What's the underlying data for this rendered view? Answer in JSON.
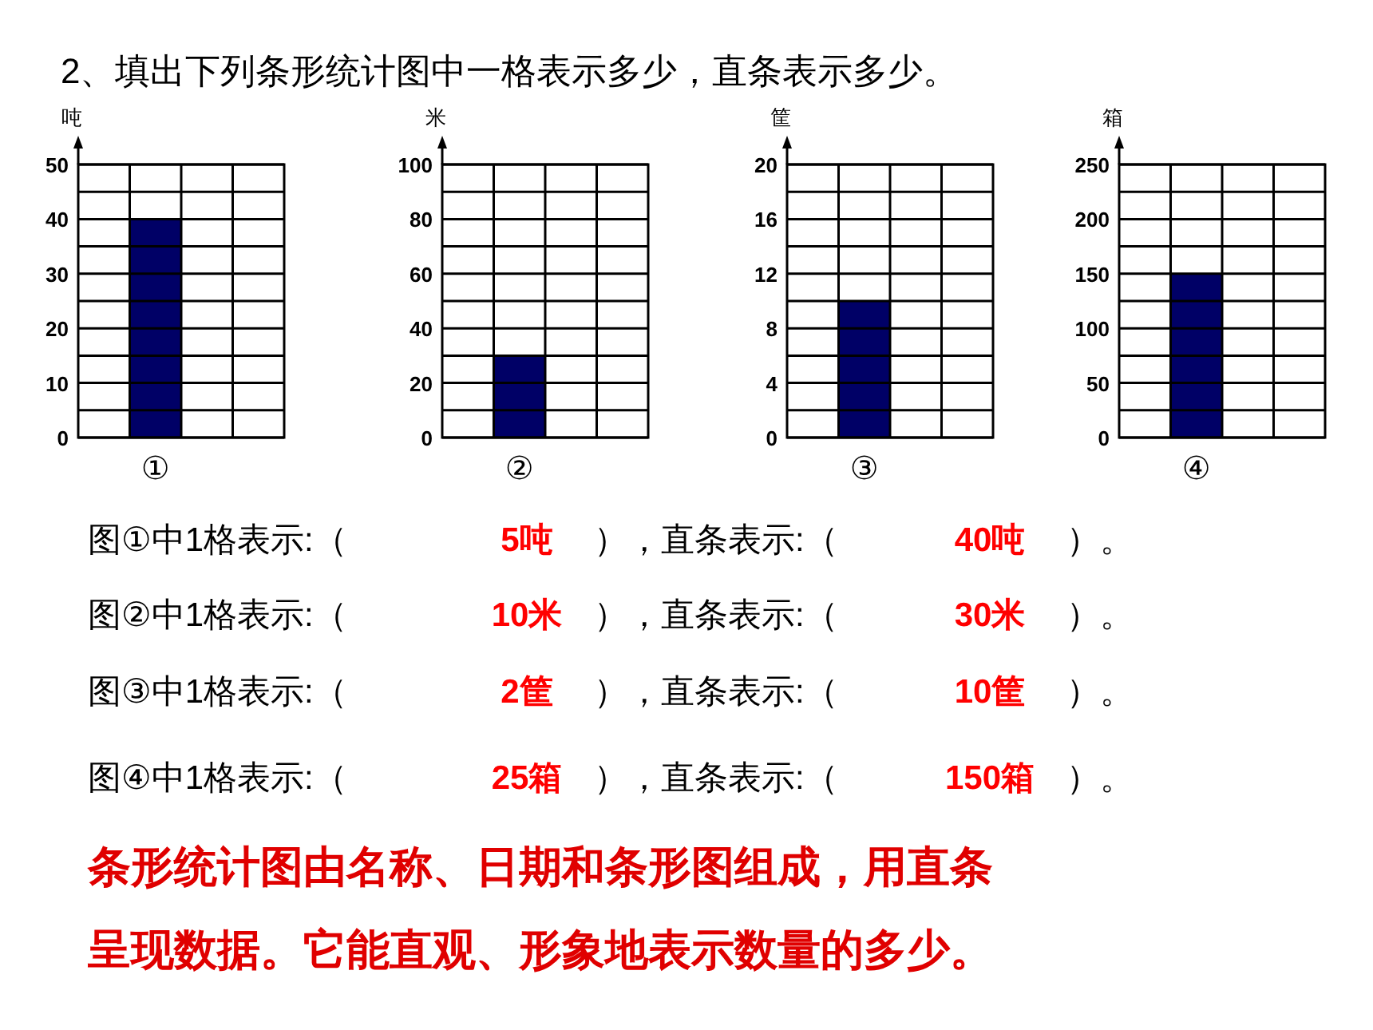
{
  "chart_data": [
    {
      "type": "bar",
      "title": "2、填出下列条形统计图中一格表示多少，直条表示多少。",
      "ylabel": "吨",
      "xlabel": "①",
      "categories": [
        null,
        null,
        null,
        null
      ],
      "values": [
        null,
        40,
        null,
        null
      ],
      "color": "#000066",
      "ylim": [
        0,
        50
      ],
      "yticks": [
        0,
        {
          "value": 5,
          "label": null
        },
        10,
        {
          "value": 15,
          "label": null
        },
        20,
        {
          "value": 25,
          "label": null
        },
        30,
        {
          "value": 35,
          "label": null
        },
        40,
        {
          "value": 45,
          "label": null
        },
        50
      ],
      "grid": true
    },
    {
      "type": "bar",
      "ylabel": "米",
      "xlabel": "②",
      "categories": [
        null,
        null,
        null,
        null
      ],
      "values": [
        null,
        30,
        null,
        null
      ],
      "color": "#000066",
      "ylim": [
        0,
        100
      ],
      "yticks": [
        0,
        {
          "value": 10,
          "label": null
        },
        20,
        {
          "value": 30,
          "label": null
        },
        40,
        {
          "value": 50,
          "label": null
        },
        60,
        {
          "value": 70,
          "label": null
        },
        80,
        {
          "value": 90,
          "label": null
        },
        100
      ],
      "grid": true
    },
    {
      "type": "bar",
      "ylabel": "筐",
      "xlabel": "③",
      "categories": [
        null,
        null,
        null,
        null
      ],
      "values": [
        null,
        10,
        null,
        null
      ],
      "color": "#000066",
      "ylim": [
        0,
        20
      ],
      "yticks": [
        0,
        {
          "value": 2,
          "label": null
        },
        4,
        {
          "value": 6,
          "label": null
        },
        8,
        {
          "value": 10,
          "label": null
        },
        12,
        {
          "value": 14,
          "label": null
        },
        16,
        {
          "value": 18,
          "label": null
        },
        20
      ],
      "grid": true
    },
    {
      "type": "bar",
      "ylabel": "箱",
      "xlabel": "④",
      "categories": [
        null,
        null,
        null,
        null
      ],
      "values": [
        null,
        150,
        null,
        null
      ],
      "color": "#000066",
      "ylim": [
        0,
        250
      ],
      "yticks": [
        0,
        {
          "value": 25,
          "label": null
        },
        50,
        {
          "value": 75,
          "label": null
        },
        100,
        {
          "value": 125,
          "label": null
        },
        150,
        {
          "value": 175,
          "label": null
        },
        200,
        {
          "value": 225,
          "label": null
        },
        250
      ],
      "grid": true
    },
    {
      "type": "other",
      "annotations": [
        "图①中1格表示:（",
        "5吨",
        "），直条表示:（",
        "40吨",
        "）。",
        "图②中1格表示:（",
        "10米",
        "），直条表示:（",
        "30米",
        "）。",
        "图③中1格表示:（",
        "2筐",
        "），直条表示:（",
        "10筐",
        "）。",
        "图④中1格表示:（",
        "25箱",
        "），直条表示:（",
        "150箱",
        "）。",
        "条形统计图由名称、日期和条形图组成，用直条",
        "呈现数据。它能直观、形象地表示数量的多少。"
      ]
    }
  ]
}
